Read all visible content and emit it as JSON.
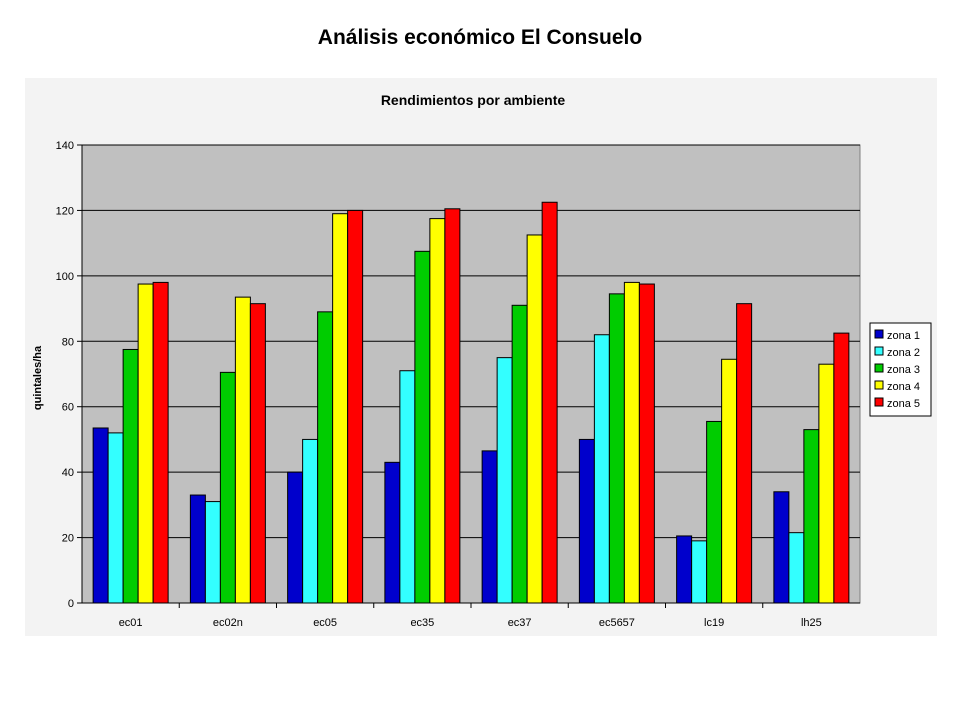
{
  "slide": {
    "title": "Análisis económico El Consuelo"
  },
  "chart_data": {
    "type": "bar",
    "title": "Rendimientos por ambiente",
    "xlabel": "",
    "ylabel": "quintales/ha",
    "ylim": [
      0,
      140
    ],
    "yticks": [
      0,
      20,
      40,
      60,
      80,
      100,
      120,
      140
    ],
    "grid": true,
    "legend_position": "right",
    "categories": [
      "ec01",
      "ec02n",
      "ec05",
      "ec35",
      "ec37",
      "ec5657",
      "lc19",
      "lh25"
    ],
    "series": [
      {
        "name": "zona 1",
        "color": "#0000cc",
        "values": [
          53.5,
          33,
          40,
          43,
          46.5,
          50,
          20.5,
          34
        ]
      },
      {
        "name": "zona 2",
        "color": "#33ffff",
        "values": [
          52,
          31,
          50,
          71,
          75,
          82,
          19,
          21.5
        ]
      },
      {
        "name": "zona 3",
        "color": "#00cc00",
        "values": [
          77.5,
          70.5,
          89,
          107.5,
          91,
          94.5,
          55.5,
          53
        ]
      },
      {
        "name": "zona 4",
        "color": "#ffff00",
        "values": [
          97.5,
          93.5,
          119,
          117.5,
          112.5,
          98,
          74.5,
          73
        ]
      },
      {
        "name": "zona 5",
        "color": "#ff0000",
        "values": [
          98,
          91.5,
          120,
          120.5,
          122.5,
          97.5,
          91.5,
          82.5
        ]
      }
    ],
    "plot_background": "#c0c0c0"
  }
}
